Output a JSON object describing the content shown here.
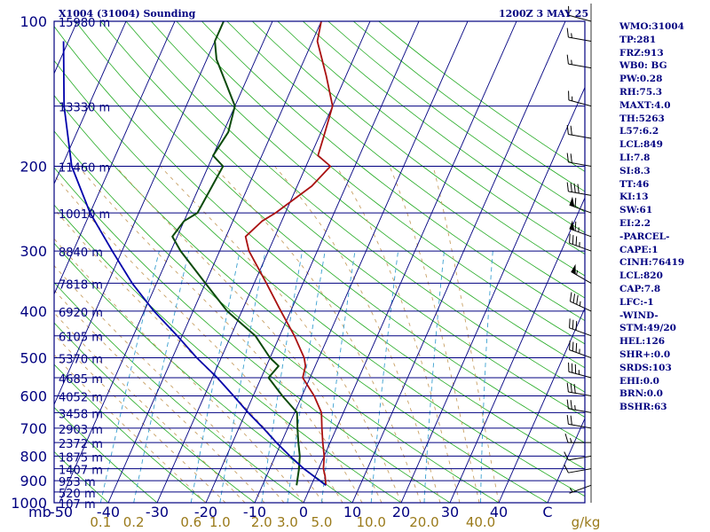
{
  "header": {
    "station": "X1004 (31004) Sounding",
    "valid": "1200Z  3 MAY 25"
  },
  "indices": [
    "WMO:31004",
    "TP:281",
    "FRZ:913",
    "WB0: BG",
    "PW:0.28",
    "RH:75.3",
    "MAXT:4.0",
    "TH:5263",
    "L57:6.2",
    "LCL:849",
    "LI:7.8",
    "SI:8.3",
    "TT:46",
    "KI:13",
    "SW:61",
    "EI:2.2",
    "-PARCEL-",
    "CAPE:1",
    "CINH:76419",
    "LCL:820",
    "CAP:7.8",
    "LFC:-1",
    "-WIND-",
    "STM:49/20",
    "HEL:126",
    "SHR+:0.0",
    "SRDS:103",
    "EHI:0.0",
    "BRN:0.0",
    "BSHR:63"
  ],
  "colors": {
    "frame": "#000080",
    "isobar": "#000080",
    "isotherm": "#000080",
    "dry_adiabat": "#22aa22",
    "moist_adiabat": "#c8a064",
    "mixing_ratio": "#3aa0d0",
    "temperature": "#aa1111",
    "dewpoint": "#0b4a0b",
    "parcel": "#0000aa",
    "axis_text": "#000080",
    "mixing_text": "#9a7a1a",
    "wind": "#000000"
  },
  "chart_data": {
    "type": "skew-t",
    "ylabel": "mb",
    "ylim": [
      1000,
      100
    ],
    "xlim": [
      -50,
      50
    ],
    "pressure_levels": [
      {
        "p": 1000,
        "label": "1000",
        "height": "107 m"
      },
      {
        "p": 950,
        "label": "",
        "height": "520 m"
      },
      {
        "p": 900,
        "label": "900",
        "height": "953 m"
      },
      {
        "p": 850,
        "label": "",
        "height": "1407 m"
      },
      {
        "p": 800,
        "label": "800",
        "height": "1875 m"
      },
      {
        "p": 750,
        "label": "",
        "height": "2372 m"
      },
      {
        "p": 700,
        "label": "700",
        "height": "2903 m"
      },
      {
        "p": 650,
        "label": "",
        "height": "3458 m"
      },
      {
        "p": 600,
        "label": "600",
        "height": "4052 m"
      },
      {
        "p": 550,
        "label": "",
        "height": "4685 m"
      },
      {
        "p": 500,
        "label": "500",
        "height": "5370 m"
      },
      {
        "p": 450,
        "label": "",
        "height": "6105 m"
      },
      {
        "p": 400,
        "label": "400",
        "height": "6920 m"
      },
      {
        "p": 350,
        "label": "",
        "height": "7818 m"
      },
      {
        "p": 300,
        "label": "300",
        "height": "8840 m"
      },
      {
        "p": 250,
        "label": "",
        "height": "10010 m"
      },
      {
        "p": 200,
        "label": "200",
        "height": "11460 m"
      },
      {
        "p": 150,
        "label": "",
        "height": "13330 m"
      },
      {
        "p": 100,
        "label": "100",
        "height": "15980 m"
      }
    ],
    "temperature_ticks": [
      -50,
      -40,
      -30,
      -20,
      -10,
      0,
      10,
      20,
      30,
      40,
      50
    ],
    "temperature_tick_labels": [
      "-50",
      "-40",
      "-30",
      "-20",
      "-10",
      "0",
      "10",
      "20",
      "30",
      "40",
      "C"
    ],
    "mixing_ratios": [
      {
        "w": 0.1,
        "label": "0.1"
      },
      {
        "w": 0.2,
        "label": "0.2"
      },
      {
        "w": 0.6,
        "label": "0.6"
      },
      {
        "w": 1.0,
        "label": "1.0"
      },
      {
        "w": 2.0,
        "label": "2.0"
      },
      {
        "w": 3.0,
        "label": "3.0"
      },
      {
        "w": 5.0,
        "label": "5.0"
      },
      {
        "w": 10.0,
        "label": "10.0"
      },
      {
        "w": 20.0,
        "label": "20.0"
      },
      {
        "w": 40.0,
        "label": "40.0"
      }
    ],
    "mixing_ratio_unit": "g/kg",
    "series": [
      {
        "key": "temperature",
        "points": [
          {
            "p": 920,
            "t": 3.0
          },
          {
            "p": 880,
            "t": 2.0
          },
          {
            "p": 850,
            "t": 1.0
          },
          {
            "p": 800,
            "t": 0.0
          },
          {
            "p": 750,
            "t": -1.5
          },
          {
            "p": 700,
            "t": -3.0
          },
          {
            "p": 650,
            "t": -4.5
          },
          {
            "p": 600,
            "t": -7.5
          },
          {
            "p": 550,
            "t": -11.5
          },
          {
            "p": 520,
            "t": -12.0
          },
          {
            "p": 500,
            "t": -13.0
          },
          {
            "p": 450,
            "t": -17.0
          },
          {
            "p": 400,
            "t": -22.0
          },
          {
            "p": 350,
            "t": -27.5
          },
          {
            "p": 300,
            "t": -34.0
          },
          {
            "p": 280,
            "t": -36.0
          },
          {
            "p": 260,
            "t": -34.0
          },
          {
            "p": 250,
            "t": -32.0
          },
          {
            "p": 220,
            "t": -27.0
          },
          {
            "p": 200,
            "t": -25.0
          },
          {
            "p": 190,
            "t": -28.5
          },
          {
            "p": 175,
            "t": -29.0
          },
          {
            "p": 150,
            "t": -30.0
          },
          {
            "p": 130,
            "t": -34.0
          },
          {
            "p": 110,
            "t": -39.0
          },
          {
            "p": 100,
            "t": -40.0
          }
        ]
      },
      {
        "key": "dewpoint",
        "points": [
          {
            "p": 920,
            "t": -3.0
          },
          {
            "p": 850,
            "t": -4.0
          },
          {
            "p": 800,
            "t": -5.0
          },
          {
            "p": 750,
            "t": -6.5
          },
          {
            "p": 700,
            "t": -8.0
          },
          {
            "p": 650,
            "t": -9.5
          },
          {
            "p": 600,
            "t": -14.0
          },
          {
            "p": 550,
            "t": -18.5
          },
          {
            "p": 520,
            "t": -17.5
          },
          {
            "p": 500,
            "t": -20.0
          },
          {
            "p": 450,
            "t": -25.0
          },
          {
            "p": 400,
            "t": -33.0
          },
          {
            "p": 350,
            "t": -40.0
          },
          {
            "p": 300,
            "t": -48.0
          },
          {
            "p": 280,
            "t": -51.0
          },
          {
            "p": 260,
            "t": -50.0
          },
          {
            "p": 250,
            "t": -48.0
          },
          {
            "p": 200,
            "t": -47.0
          },
          {
            "p": 190,
            "t": -50.0
          },
          {
            "p": 170,
            "t": -49.0
          },
          {
            "p": 150,
            "t": -50.0
          },
          {
            "p": 120,
            "t": -58.0
          },
          {
            "p": 110,
            "t": -60.0
          },
          {
            "p": 100,
            "t": -60.0
          }
        ]
      },
      {
        "key": "parcel",
        "points": [
          {
            "p": 920,
            "t": 3.0
          },
          {
            "p": 850,
            "t": -3.0
          },
          {
            "p": 800,
            "t": -7.0
          },
          {
            "p": 750,
            "t": -11.0
          },
          {
            "p": 700,
            "t": -15.0
          },
          {
            "p": 650,
            "t": -19.5
          },
          {
            "p": 600,
            "t": -24.0
          },
          {
            "p": 550,
            "t": -29.0
          },
          {
            "p": 500,
            "t": -35.0
          },
          {
            "p": 450,
            "t": -41.0
          },
          {
            "p": 400,
            "t": -48.0
          },
          {
            "p": 350,
            "t": -55.0
          },
          {
            "p": 300,
            "t": -62.0
          },
          {
            "p": 250,
            "t": -70.0
          },
          {
            "p": 200,
            "t": -78.0
          },
          {
            "p": 150,
            "t": -85.0
          },
          {
            "p": 110,
            "t": -91.0
          }
        ]
      }
    ],
    "wind_barbs": [
      {
        "p": 920,
        "dir": 250,
        "spd": 5
      },
      {
        "p": 850,
        "dir": 260,
        "spd": 10
      },
      {
        "p": 800,
        "dir": 260,
        "spd": 10
      },
      {
        "p": 750,
        "dir": 270,
        "spd": 15
      },
      {
        "p": 700,
        "dir": 280,
        "spd": 20
      },
      {
        "p": 650,
        "dir": 280,
        "spd": 25
      },
      {
        "p": 600,
        "dir": 280,
        "spd": 30
      },
      {
        "p": 550,
        "dir": 285,
        "spd": 35
      },
      {
        "p": 500,
        "dir": 290,
        "spd": 35
      },
      {
        "p": 450,
        "dir": 290,
        "spd": 30
      },
      {
        "p": 400,
        "dir": 295,
        "spd": 35
      },
      {
        "p": 350,
        "dir": 300,
        "spd": 55
      },
      {
        "p": 300,
        "dir": 290,
        "spd": 35
      },
      {
        "p": 280,
        "dir": 290,
        "spd": 65
      },
      {
        "p": 250,
        "dir": 290,
        "spd": 60
      },
      {
        "p": 230,
        "dir": 280,
        "spd": 40
      },
      {
        "p": 200,
        "dir": 280,
        "spd": 20
      },
      {
        "p": 175,
        "dir": 280,
        "spd": 20
      },
      {
        "p": 150,
        "dir": 285,
        "spd": 15
      },
      {
        "p": 125,
        "dir": 280,
        "spd": 15
      },
      {
        "p": 110,
        "dir": 280,
        "spd": 15
      },
      {
        "p": 100,
        "dir": 285,
        "spd": 10
      }
    ],
    "grid": true
  }
}
